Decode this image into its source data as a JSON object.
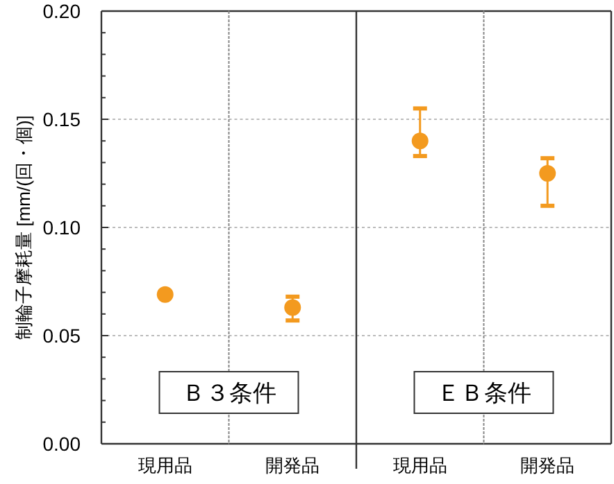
{
  "chart_data": [
    {
      "type": "scatter",
      "ylabel": "制輪子摩耗量 [mm/(回・個)]",
      "categories": [
        "現用品"
      ],
      "series": [
        {
          "color": "#f39a1f",
          "values": [
            0.069
          ]
        }
      ],
      "ylim": [
        0,
        0.2
      ],
      "yticks": [
        {
          "value": 0,
          "label": "0.00"
        },
        {
          "value": 0.01,
          "label": null
        },
        {
          "value": 0.02,
          "label": null
        },
        {
          "value": 0.03,
          "label": null
        },
        {
          "value": 0.04,
          "label": null
        },
        {
          "value": 0.05,
          "label": "0.05"
        },
        {
          "value": 0.06,
          "label": null
        },
        {
          "value": 0.07,
          "label": null
        },
        {
          "value": 0.08,
          "label": null
        },
        {
          "value": 0.09,
          "label": null
        },
        {
          "value": 0.1,
          "label": "0.10"
        },
        {
          "value": 0.11,
          "label": null
        },
        {
          "value": 0.12,
          "label": null
        },
        {
          "value": 0.13,
          "label": null
        },
        {
          "value": 0.14,
          "label": null
        },
        {
          "value": 0.15,
          "label": "0.15"
        },
        {
          "value": 0.16,
          "label": null
        },
        {
          "value": 0.17,
          "label": null
        },
        {
          "value": 0.18,
          "label": null
        },
        {
          "value": 0.19,
          "label": null
        },
        {
          "value": 0.2,
          "label": "0.20"
        }
      ],
      "grid": "y",
      "marker": "circle",
      "annotations": [
        "Ｂ３条件"
      ]
    },
    {
      "type": "scatter",
      "categories": [
        "開発品"
      ],
      "series": [
        {
          "color": "#f39a1f",
          "values": [
            0.063
          ],
          "errors": [
            [
              0.057,
              0.068
            ]
          ]
        }
      ],
      "ylim": [
        0,
        0.2
      ],
      "yticks": [
        0,
        0.05,
        0.1,
        0.15,
        0.2
      ],
      "tick_labels": "x",
      "grid": "y",
      "marker": "circle"
    },
    {
      "type": "scatter",
      "categories": [
        "現用品"
      ],
      "series": [
        {
          "color": "#f39a1f",
          "values": [
            0.14
          ],
          "errors": [
            [
              0.133,
              0.155
            ]
          ]
        }
      ],
      "ylim": [
        0,
        0.2
      ],
      "yticks": [
        0,
        0.05,
        0.1,
        0.15,
        0.2
      ],
      "tick_labels": "x",
      "grid": "y",
      "marker": "circle",
      "annotations": [
        "ＥＢ条件"
      ]
    },
    {
      "type": "scatter",
      "categories": [
        "開発品"
      ],
      "series": [
        {
          "color": "#f39a1f",
          "values": [
            0.125
          ],
          "errors": [
            [
              0.11,
              0.132
            ]
          ]
        }
      ],
      "ylim": [
        0,
        0.2
      ],
      "yticks": [
        0,
        0.05,
        0.1,
        0.15,
        0.2
      ],
      "tick_labels": "x",
      "grid": "y",
      "marker": "circle"
    }
  ]
}
